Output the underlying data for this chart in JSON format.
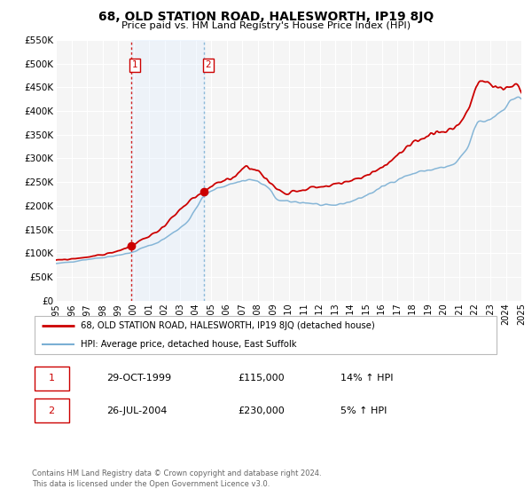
{
  "title": "68, OLD STATION ROAD, HALESWORTH, IP19 8JQ",
  "subtitle": "Price paid vs. HM Land Registry's House Price Index (HPI)",
  "xlim": [
    1995,
    2025
  ],
  "ylim": [
    0,
    550000
  ],
  "yticks": [
    0,
    50000,
    100000,
    150000,
    200000,
    250000,
    300000,
    350000,
    400000,
    450000,
    500000,
    550000
  ],
  "ytick_labels": [
    "£0",
    "£50K",
    "£100K",
    "£150K",
    "£200K",
    "£250K",
    "£300K",
    "£350K",
    "£400K",
    "£450K",
    "£500K",
    "£550K"
  ],
  "xticks": [
    1995,
    1996,
    1997,
    1998,
    1999,
    2000,
    2001,
    2002,
    2003,
    2004,
    2005,
    2006,
    2007,
    2008,
    2009,
    2010,
    2011,
    2012,
    2013,
    2014,
    2015,
    2016,
    2017,
    2018,
    2019,
    2020,
    2021,
    2022,
    2023,
    2024,
    2025
  ],
  "sale1_x": 1999.83,
  "sale1_y": 115000,
  "sale2_x": 2004.57,
  "sale2_y": 230000,
  "shaded_start": 1999.83,
  "shaded_end": 2004.57,
  "red_color": "#cc0000",
  "blue_color": "#7aafd4",
  "shade_color": "#ddeeff",
  "legend_label_red": "68, OLD STATION ROAD, HALESWORTH, IP19 8JQ (detached house)",
  "legend_label_blue": "HPI: Average price, detached house, East Suffolk",
  "sale1_date": "29-OCT-1999",
  "sale1_price": "£115,000",
  "sale1_hpi": "14% ↑ HPI",
  "sale2_date": "26-JUL-2004",
  "sale2_price": "£230,000",
  "sale2_hpi": "5% ↑ HPI",
  "footer1": "Contains HM Land Registry data © Crown copyright and database right 2024.",
  "footer2": "This data is licensed under the Open Government Licence v3.0.",
  "bg_color": "#f5f5f5"
}
